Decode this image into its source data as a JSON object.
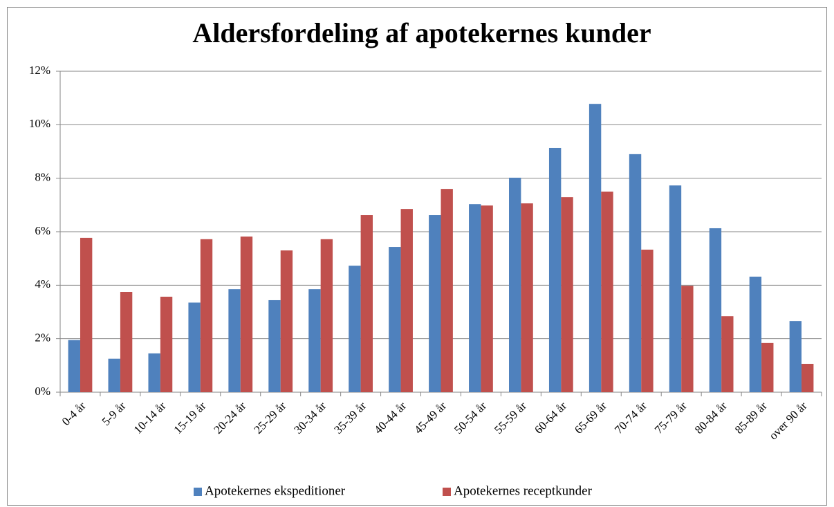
{
  "chart_data": {
    "type": "bar",
    "title": "Aldersfordeling af apotekernes kunder",
    "categories": [
      "0-4 år",
      "5-9 år",
      "10-14 år",
      "15-19 år",
      "20-24 år",
      "25-29 år",
      "30-34 år",
      "35-39 år",
      "40-44 år",
      "45-49 år",
      "50-54 år",
      "55-59 år",
      "60-64 år",
      "65-69 år",
      "70-74 år",
      "75-79 år",
      "80-84 år",
      "85-89 år",
      "over 90 år"
    ],
    "series": [
      {
        "name": "Apotekernes ekspeditioner",
        "color": "#4f81bd",
        "values": [
          1.95,
          1.25,
          1.45,
          3.35,
          3.85,
          3.44,
          3.85,
          4.73,
          5.43,
          6.62,
          7.03,
          8.02,
          9.13,
          10.78,
          8.9,
          7.73,
          6.13,
          4.32,
          2.66
        ]
      },
      {
        "name": "Apotekernes receptkunder",
        "color": "#c0504d",
        "values": [
          5.77,
          3.75,
          3.57,
          5.72,
          5.82,
          5.3,
          5.72,
          6.62,
          6.85,
          7.6,
          6.98,
          7.06,
          7.29,
          7.5,
          5.33,
          3.98,
          2.84,
          1.84,
          1.06
        ]
      }
    ],
    "ylim": [
      0,
      12
    ],
    "yticks": [
      {
        "value": 0,
        "label": "0%"
      },
      {
        "value": 2,
        "label": "2%"
      },
      {
        "value": 4,
        "label": "4%"
      },
      {
        "value": 6,
        "label": "6%"
      },
      {
        "value": 8,
        "label": "8%"
      },
      {
        "value": 10,
        "label": "10%"
      },
      {
        "value": 12,
        "label": "12%"
      }
    ],
    "grid": true,
    "legend": "bottom"
  }
}
